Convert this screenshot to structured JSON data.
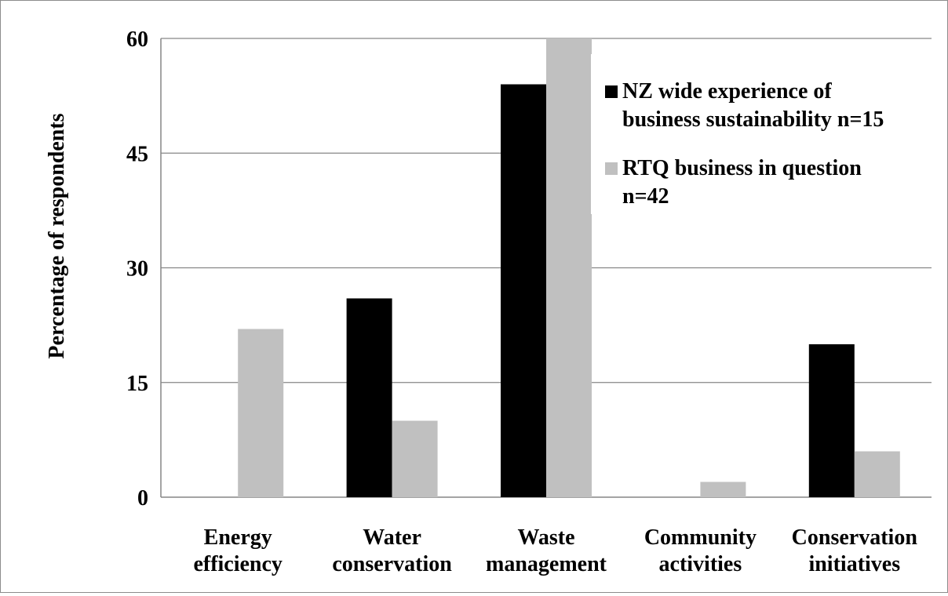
{
  "chart_data": {
    "type": "bar",
    "title": "",
    "ylabel": "Percentage of respondents",
    "xlabel": "",
    "categories": [
      [
        "Energy",
        "efficiency"
      ],
      [
        "Water",
        "conservation"
      ],
      [
        "Waste",
        "management"
      ],
      [
        "Community",
        "activities"
      ],
      [
        "Conservation",
        "initiatives"
      ]
    ],
    "ylim": [
      0,
      60
    ],
    "yticks": [
      0,
      15,
      30,
      45,
      60
    ],
    "grid": true,
    "legend_position": "top-right",
    "series": [
      {
        "name_lines": [
          "NZ wide experience of",
          "business sustainability n=15"
        ],
        "color": "#000000",
        "values": [
          0,
          26,
          54,
          0,
          20
        ]
      },
      {
        "name_lines": [
          "RTQ business in question",
          "n=42"
        ],
        "color": "#c0c0c0",
        "values": [
          22,
          10,
          60,
          2,
          6
        ]
      }
    ]
  }
}
